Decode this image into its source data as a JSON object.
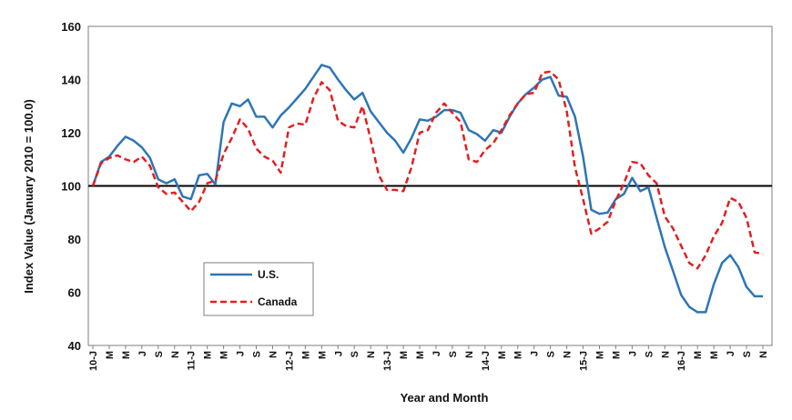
{
  "chart_data": {
    "type": "line",
    "xlabel": "Year and Month",
    "ylabel": "Index Value (January 2010 = 100.0)",
    "ylim": [
      40,
      160
    ],
    "yticks": [
      40,
      60,
      80,
      100,
      120,
      140,
      160
    ],
    "reference_line": 100,
    "grid": false,
    "legend_position": "lower-left",
    "x_tick_labels": [
      "10-J",
      "M",
      "M",
      "J",
      "S",
      "N",
      "11-J",
      "M",
      "M",
      "J",
      "S",
      "N",
      "12-J",
      "M",
      "M",
      "J",
      "S",
      "N",
      "13-J",
      "M",
      "M",
      "J",
      "S",
      "N",
      "14-J",
      "M",
      "M",
      "J",
      "S",
      "N",
      "15-J",
      "M",
      "M",
      "J",
      "S",
      "N",
      "16-J",
      "M",
      "M",
      "J",
      "S",
      "N"
    ],
    "series": [
      {
        "name": "U.S.",
        "color": "#2e75b6",
        "style": "solid",
        "values": [
          100,
          109,
          111,
          115,
          118.5,
          117,
          114.5,
          110.5,
          102.5,
          101,
          102.5,
          96,
          95,
          104,
          104.5,
          100.5,
          124,
          131,
          130,
          132.5,
          126,
          126,
          122,
          126.5,
          129.5,
          133,
          136.5,
          141,
          145.5,
          144.5,
          140,
          136,
          132.5,
          135,
          128,
          124,
          120,
          117,
          112.5,
          118,
          125,
          124.5,
          126,
          128.5,
          128.5,
          127.5,
          121,
          119.5,
          117,
          121,
          120,
          126,
          131,
          134.5,
          137,
          140,
          141,
          134,
          133.5,
          126,
          111,
          91,
          89.5,
          90,
          95,
          97,
          103,
          98,
          99.5,
          88,
          77,
          68,
          59,
          54.5,
          52.5,
          52.5,
          63,
          71,
          74,
          69.5,
          62,
          58.5,
          58.5
        ]
      },
      {
        "name": "Canada",
        "color": "#e02020",
        "style": "dashed",
        "values": [
          100,
          108.5,
          110.5,
          111.5,
          110,
          109,
          111,
          107.5,
          99.5,
          97,
          97.5,
          94,
          90.5,
          94,
          101,
          102,
          112,
          118,
          125,
          121.5,
          114,
          111,
          109.5,
          105,
          122,
          123.5,
          123,
          133,
          139,
          136,
          124.5,
          122.5,
          122,
          130,
          117.5,
          104,
          98.5,
          98.5,
          98,
          107,
          120,
          121,
          127.5,
          131,
          127.5,
          124,
          110,
          109,
          113.5,
          116,
          121,
          126.5,
          131,
          134.5,
          135,
          142.5,
          143,
          140,
          128,
          107,
          95,
          82,
          84,
          86.5,
          94.5,
          101,
          109,
          108.5,
          104,
          101,
          88.5,
          84,
          77.5,
          71,
          69,
          74,
          81,
          86,
          95.5,
          94,
          88,
          75,
          74.5
        ]
      }
    ]
  }
}
